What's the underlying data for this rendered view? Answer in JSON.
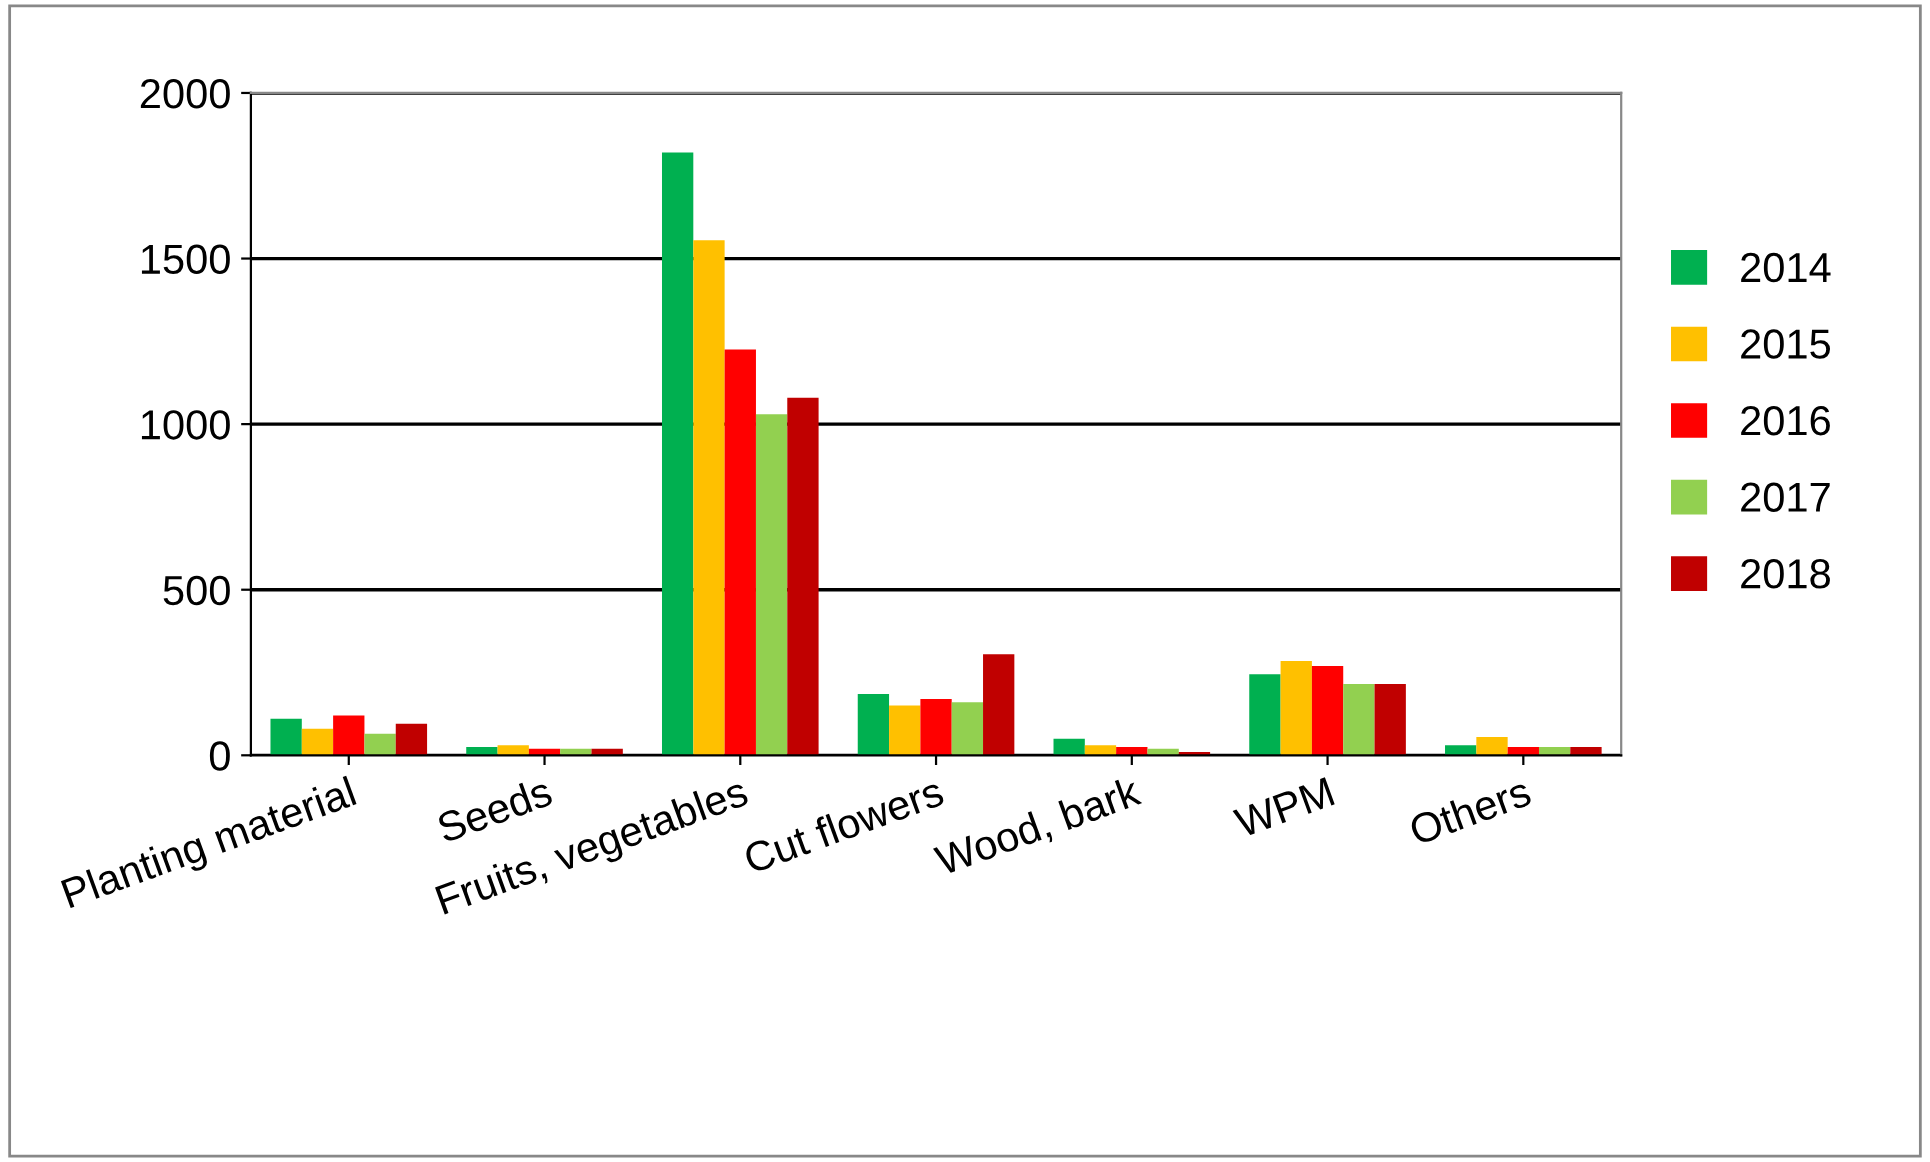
{
  "chart_data": {
    "type": "bar",
    "categories": [
      "Planting material",
      "Seeds",
      "Fruits, vegetables",
      "Cut flowers",
      "Wood, bark",
      "WPM",
      "Others"
    ],
    "series": [
      {
        "name": "2014",
        "color": "#00b050",
        "values": [
          110,
          25,
          1820,
          185,
          50,
          245,
          30
        ]
      },
      {
        "name": "2015",
        "color": "#ffc000",
        "values": [
          80,
          30,
          1555,
          150,
          30,
          285,
          55
        ]
      },
      {
        "name": "2016",
        "color": "#ff0000",
        "values": [
          120,
          20,
          1225,
          170,
          25,
          270,
          25
        ]
      },
      {
        "name": "2017",
        "color": "#92d050",
        "values": [
          65,
          20,
          1030,
          160,
          20,
          215,
          25
        ]
      },
      {
        "name": "2018",
        "color": "#c00000",
        "values": [
          95,
          20,
          1080,
          305,
          10,
          215,
          25
        ]
      }
    ],
    "ylim": [
      0,
      2000
    ],
    "yticks": [
      0,
      500,
      1000,
      1500,
      2000
    ],
    "grid": "y",
    "legend": "right"
  }
}
